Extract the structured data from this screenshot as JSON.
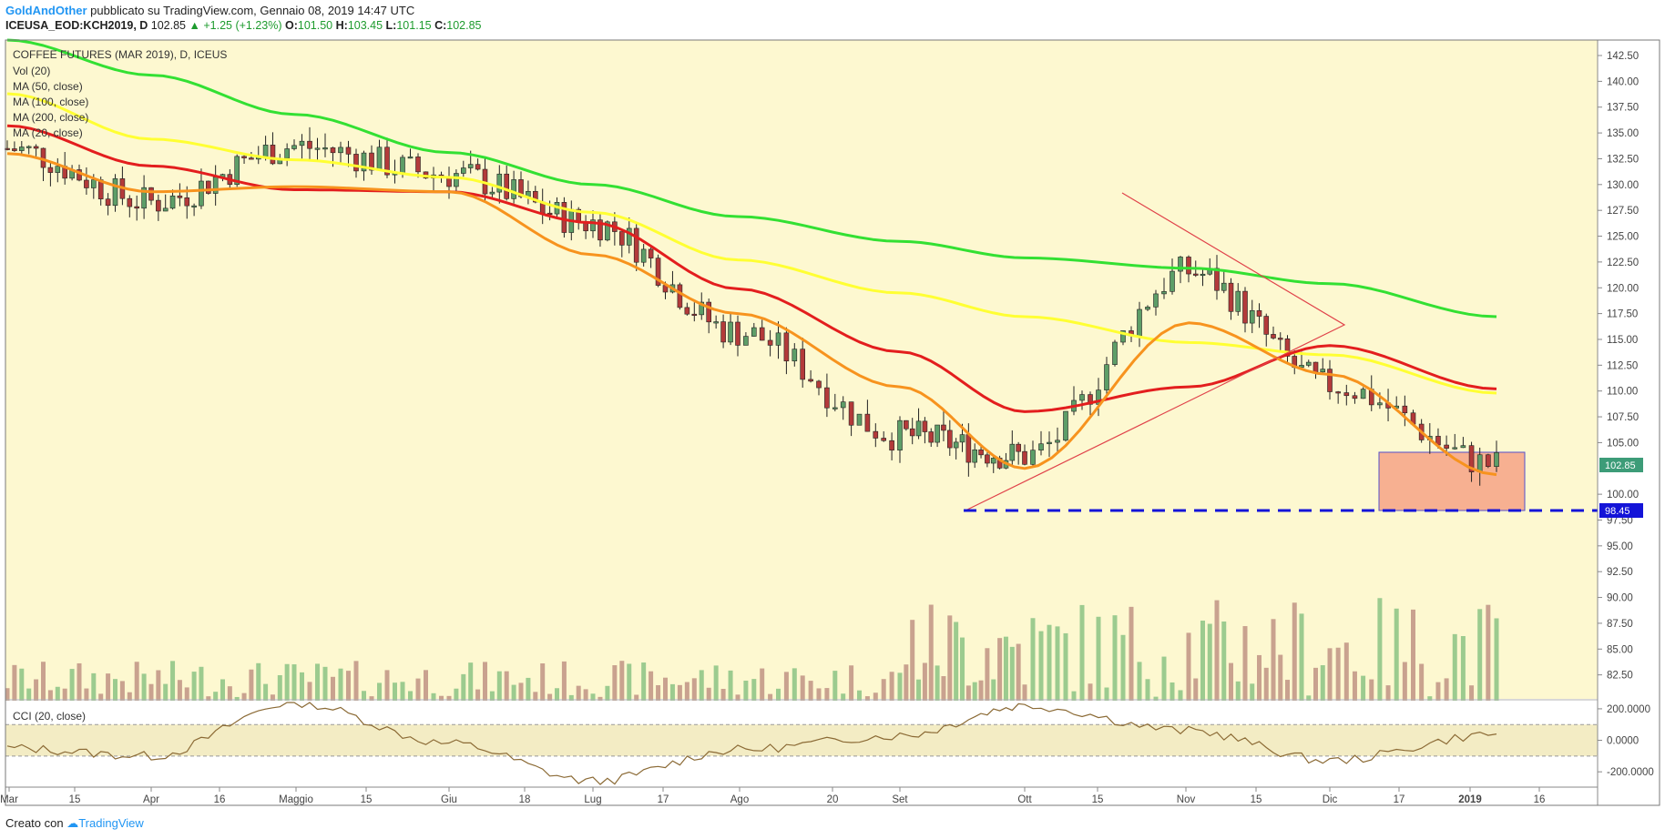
{
  "header": {
    "author": "GoldAndOther",
    "published_text": "pubblicato su TradingView.com, Gennaio 08, 2019 14:47 UTC",
    "symbol": "ICEUSA_EOD:KCH2019, D",
    "last": "102.85",
    "change": "+1.25 (+1.23%)",
    "open_label": "O:",
    "open": "101.50",
    "high_label": "H:",
    "high": "103.45",
    "low_label": "L:",
    "low": "101.15",
    "close_label": "C:",
    "close": "102.85"
  },
  "legend": [
    "COFFEE FUTURES (MAR 2019), D, ICEUS",
    "Vol (20)",
    "MA (50, close)",
    "MA (100, close)",
    "MA (200, close)",
    "MA (20, close)"
  ],
  "cci_label": "CCI (20, close)",
  "footer": {
    "prefix": "Creato con",
    "brand": "TradingView"
  },
  "colors": {
    "background": "#ffffff",
    "pane": "#fdf8d0",
    "up": "#5d9e68",
    "down": "#b33a3a",
    "vol_up": "#9ccb8f",
    "vol_down": "#c9a28f",
    "ma20": "#f7931e",
    "ma50": "#e31e1e",
    "ma100": "#ffff33",
    "ma200": "#33e033",
    "trend": "#e0424a",
    "support": "#1414d8",
    "box_fill": "#f7a98b",
    "box_stroke": "#4040cc",
    "last_label": "#3d9c78",
    "cci": "#8b6a35"
  },
  "chart_data": [
    {
      "type": "line",
      "title": "COFFEE FUTURES (MAR 2019), D, ICEUS",
      "y_axis_ticks": [
        "142.50",
        "140.00",
        "137.50",
        "135.00",
        "132.50",
        "130.00",
        "127.50",
        "125.00",
        "122.50",
        "120.00",
        "117.50",
        "115.00",
        "112.50",
        "110.00",
        "107.50",
        "105.00",
        "100.00",
        "97.50",
        "95.00",
        "92.50",
        "90.00",
        "87.50",
        "85.00",
        "82.50"
      ],
      "ylim": [
        80.0,
        144.0
      ],
      "x_axis_ticks": [
        "Mar",
        "15",
        "Apr",
        "16",
        "Maggio",
        "15",
        "Giu",
        "18",
        "Lug",
        "17",
        "Ago",
        "20",
        "Set",
        "Ott",
        "15",
        "Nov",
        "15",
        "Dic",
        "17",
        "2019",
        "16"
      ],
      "last_price_label": "102.85",
      "support_label": "98.45",
      "series": [
        {
          "name": "MA (200, close)",
          "x": [
            "Mar",
            "Apr",
            "Maggio",
            "Giu",
            "Lug",
            "Ago",
            "Set",
            "Ott",
            "Nov",
            "Dic",
            "2019"
          ],
          "values": [
            144.0,
            140.6,
            136.8,
            133.1,
            130.0,
            126.9,
            124.5,
            122.9,
            121.9,
            120.4,
            117.2
          ]
        },
        {
          "name": "MA (100, close)",
          "x": [
            "Mar",
            "Apr",
            "Maggio",
            "Giu",
            "Lug",
            "Ago",
            "Set",
            "Ott",
            "Nov",
            "Dic",
            "2019"
          ],
          "values": [
            138.8,
            134.4,
            132.4,
            130.7,
            127.3,
            122.7,
            119.5,
            117.2,
            114.7,
            113.5,
            109.8
          ]
        },
        {
          "name": "MA (50, close)",
          "x": [
            "Mar",
            "Apr",
            "Maggio",
            "Giu",
            "Lug",
            "Ago",
            "Set",
            "Ott",
            "Nov",
            "Dic",
            "2019"
          ],
          "values": [
            135.7,
            131.8,
            129.5,
            129.3,
            126.3,
            119.9,
            113.8,
            108.0,
            110.4,
            114.4,
            110.2
          ]
        },
        {
          "name": "MA (20, close)",
          "x": [
            "Mar",
            "Apr",
            "Maggio",
            "Giu",
            "Lug",
            "Ago",
            "Set",
            "Ott",
            "Nov",
            "Dic",
            "2019"
          ],
          "values": [
            133.0,
            129.3,
            129.8,
            129.3,
            123.2,
            117.5,
            110.4,
            102.5,
            116.6,
            111.6,
            101.9
          ]
        },
        {
          "name": "Close",
          "x": [
            "Mar",
            "Apr",
            "Maggio",
            "Giu",
            "Lug",
            "Ago",
            "Set",
            "Ott",
            "Nov",
            "Dic",
            "2019"
          ],
          "values": [
            133.5,
            128.3,
            133.7,
            131.0,
            126.3,
            115.7,
            105.7,
            103.7,
            121.6,
            110.6,
            102.85
          ]
        }
      ]
    },
    {
      "type": "line",
      "title": "CCI (20, close)",
      "y_axis_ticks": [
        "200.0000",
        "0.0000",
        "-200.0000"
      ],
      "ylim": [
        -280,
        240
      ],
      "bands": [
        100,
        -100
      ],
      "x": [
        "Mar",
        "Apr",
        "Maggio",
        "Giu",
        "Lug",
        "Ago",
        "Set",
        "Ott",
        "Nov",
        "Dic",
        "2019"
      ],
      "values": [
        -50,
        -100,
        240,
        -20,
        -260,
        -60,
        30,
        220,
        60,
        -130,
        40
      ]
    }
  ]
}
